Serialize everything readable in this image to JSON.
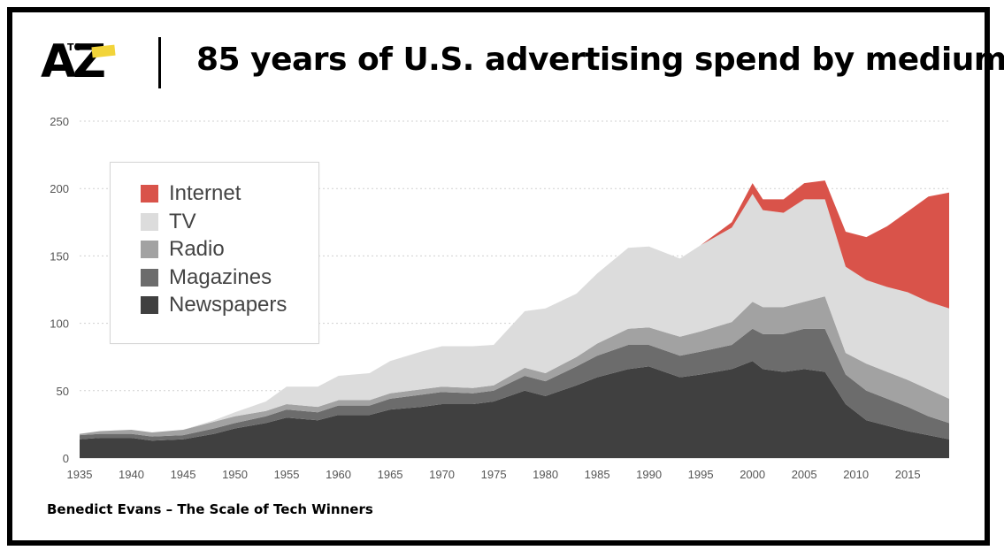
{
  "brand": {
    "logo_big": "AZ",
    "logo_small": "TO"
  },
  "title": "85 years of U.S. advertising spend by medium",
  "source": "Benedict Evans – The Scale of Tech Winners",
  "chart_data": {
    "type": "area",
    "stacked": true,
    "title": "85 years of U.S. advertising spend by medium",
    "xlabel": "",
    "ylabel": "",
    "xlim": [
      1935,
      2019
    ],
    "ylim": [
      0,
      250
    ],
    "yticks": [
      0,
      50,
      100,
      150,
      200,
      250
    ],
    "xticks": [
      1935,
      1940,
      1945,
      1950,
      1955,
      1960,
      1965,
      1970,
      1975,
      1980,
      1985,
      1990,
      1995,
      2000,
      2005,
      2010,
      2015
    ],
    "x": [
      1935,
      1937,
      1940,
      1942,
      1945,
      1948,
      1950,
      1953,
      1955,
      1958,
      1960,
      1963,
      1965,
      1968,
      1970,
      1973,
      1975,
      1978,
      1980,
      1983,
      1985,
      1988,
      1990,
      1993,
      1995,
      1998,
      2000,
      2001,
      2003,
      2005,
      2007,
      2009,
      2011,
      2013,
      2015,
      2017,
      2019
    ],
    "series": [
      {
        "name": "Newspapers",
        "color": "#404040",
        "values": [
          14,
          15,
          15,
          13,
          14,
          18,
          22,
          26,
          30,
          28,
          32,
          32,
          36,
          38,
          40,
          40,
          42,
          50,
          46,
          54,
          60,
          66,
          68,
          60,
          62,
          66,
          72,
          66,
          64,
          66,
          64,
          40,
          28,
          24,
          20,
          17,
          14
        ]
      },
      {
        "name": "Magazines",
        "color": "#6c6c6c",
        "values": [
          3,
          3,
          3,
          3,
          3,
          4,
          4,
          5,
          6,
          6,
          7,
          7,
          8,
          9,
          9,
          8,
          8,
          11,
          11,
          14,
          16,
          18,
          16,
          16,
          17,
          18,
          24,
          26,
          28,
          30,
          32,
          22,
          22,
          20,
          18,
          14,
          12
        ]
      },
      {
        "name": "Radio",
        "color": "#a2a2a2",
        "values": [
          1,
          2,
          3,
          3,
          4,
          5,
          5,
          4,
          4,
          4,
          4,
          4,
          4,
          4,
          4,
          4,
          4,
          6,
          6,
          7,
          9,
          12,
          13,
          14,
          15,
          17,
          20,
          20,
          20,
          20,
          24,
          16,
          20,
          20,
          20,
          20,
          18
        ]
      },
      {
        "name": "TV",
        "color": "#dcdcdc",
        "values": [
          0,
          0,
          0,
          0,
          0,
          1,
          3,
          7,
          13,
          15,
          18,
          20,
          24,
          28,
          30,
          31,
          30,
          42,
          48,
          47,
          52,
          60,
          60,
          58,
          64,
          70,
          80,
          72,
          70,
          76,
          72,
          64,
          62,
          63,
          65,
          65,
          67
        ]
      },
      {
        "name": "Internet",
        "color": "#d9534a",
        "values": [
          0,
          0,
          0,
          0,
          0,
          0,
          0,
          0,
          0,
          0,
          0,
          0,
          0,
          0,
          0,
          0,
          0,
          0,
          0,
          0,
          0,
          0,
          0,
          0,
          0,
          4,
          8,
          8,
          10,
          12,
          14,
          26,
          32,
          45,
          60,
          78,
          86
        ]
      }
    ]
  }
}
